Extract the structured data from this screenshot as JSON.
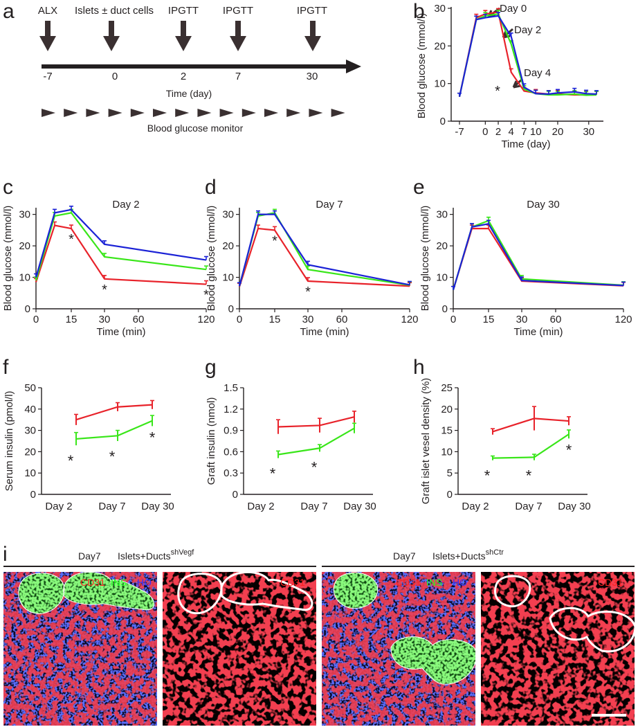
{
  "figure": {
    "panel_letters": [
      "a",
      "b",
      "c",
      "d",
      "e",
      "f",
      "g",
      "h",
      "i"
    ]
  },
  "timeline": {
    "events": [
      {
        "label": "ALX",
        "day": "-7"
      },
      {
        "label": "Islets ± duct cells",
        "day": "0"
      },
      {
        "label": "IPGTT",
        "day": "2"
      },
      {
        "label": "IPGTT",
        "day": "7"
      },
      {
        "label": "IPGTT",
        "day": "30"
      }
    ],
    "axis_label": "Time (day)",
    "monitor_label": "Blood glucose monitor",
    "monitor_marks": 14
  },
  "colors": {
    "red": "#e8222a",
    "green": "#39e619",
    "blue": "#1b22d6",
    "axis": "#231f20",
    "arrow": "#3a3031"
  },
  "chart_data": [
    {
      "panel": "b",
      "type": "line",
      "ylabel": "Blood glucose (mmol/l)",
      "xlabel": "Time (day)",
      "xticks": [
        "-7",
        "0",
        "2",
        "4",
        "7",
        "10",
        "20",
        "30"
      ],
      "ylim": [
        0,
        30
      ],
      "yticks": [
        0,
        10,
        20,
        30
      ],
      "x_positions": [
        0,
        1.3,
        2.0,
        3.0,
        4.0,
        5.0,
        5.9,
        6.9,
        7.6,
        8.9,
        9.8,
        10.6
      ],
      "series": [
        {
          "name": "red",
          "color": "#e8222a",
          "values": [
            6.5,
            27.5,
            28.5,
            29.0,
            13.0,
            8.0,
            7.5,
            7.2,
            7.2,
            7.0,
            7.0,
            7.0
          ]
        },
        {
          "name": "green",
          "color": "#39e619",
          "values": [
            6.5,
            27.0,
            28.0,
            28.5,
            20.5,
            8.5,
            7.3,
            7.0,
            7.0,
            7.2,
            6.9,
            7.0
          ]
        },
        {
          "name": "blue",
          "color": "#1b22d6",
          "values": [
            6.5,
            27.0,
            27.5,
            28.0,
            22.5,
            9.0,
            7.3,
            7.2,
            7.5,
            7.8,
            7.3,
            7.2
          ]
        }
      ],
      "annotations": [
        {
          "text": "Day 0"
        },
        {
          "text": "Day 2"
        },
        {
          "text": "Day 4"
        },
        {
          "text": "*"
        }
      ]
    },
    {
      "panel": "c",
      "type": "line",
      "title": "Day 2",
      "ylabel": "Blood glucose (mmol/l)",
      "xlabel": "Time (min)",
      "x": [
        0,
        7,
        15,
        30,
        120
      ],
      "xticks": [
        "0",
        "15",
        "30",
        "60",
        "120"
      ],
      "ylim": [
        0,
        33
      ],
      "yticks": [
        0,
        10,
        20,
        30
      ],
      "series": [
        {
          "name": "red",
          "color": "#e8222a",
          "values": [
            8.5,
            26.5,
            25.5,
            9.5,
            7.8
          ]
        },
        {
          "name": "green",
          "color": "#39e619",
          "values": [
            9.0,
            29.5,
            30.5,
            16.5,
            12.5
          ]
        },
        {
          "name": "blue",
          "color": "#1b22d6",
          "values": [
            10.0,
            30.5,
            31.5,
            20.5,
            15.5
          ]
        }
      ],
      "stars": [
        15,
        30,
        120
      ]
    },
    {
      "panel": "d",
      "type": "line",
      "title": "Day 7",
      "ylabel": "Blood glucose (mmol/l)",
      "xlabel": "Time (min)",
      "x": [
        0,
        7,
        15,
        30,
        120
      ],
      "xticks": [
        "0",
        "15",
        "30",
        "60",
        "120"
      ],
      "ylim": [
        0,
        33
      ],
      "yticks": [
        0,
        10,
        20,
        30
      ],
      "series": [
        {
          "name": "red",
          "color": "#e8222a",
          "values": [
            7.0,
            25.5,
            25.0,
            8.8,
            7.2
          ]
        },
        {
          "name": "green",
          "color": "#39e619",
          "values": [
            7.2,
            29.5,
            30.5,
            12.5,
            7.5
          ]
        },
        {
          "name": "blue",
          "color": "#1b22d6",
          "values": [
            7.2,
            30.0,
            30.0,
            14.0,
            7.6
          ]
        }
      ],
      "stars": [
        15,
        30
      ]
    },
    {
      "panel": "e",
      "type": "line",
      "title": "Day 30",
      "ylabel": "Blood glucose (mmol/l)",
      "xlabel": "Time (min)",
      "x": [
        0,
        7,
        15,
        30,
        120
      ],
      "xticks": [
        "0",
        "15",
        "30",
        "60",
        "120"
      ],
      "ylim": [
        0,
        33
      ],
      "yticks": [
        0,
        10,
        20,
        30
      ],
      "series": [
        {
          "name": "red",
          "color": "#e8222a",
          "values": [
            6.0,
            25.5,
            25.5,
            8.8,
            7.3
          ]
        },
        {
          "name": "green",
          "color": "#39e619",
          "values": [
            6.0,
            26.0,
            28.0,
            9.5,
            7.5
          ]
        },
        {
          "name": "blue",
          "color": "#1b22d6",
          "values": [
            6.0,
            26.0,
            27.0,
            9.0,
            7.4
          ]
        }
      ],
      "stars": []
    },
    {
      "panel": "f",
      "type": "line",
      "ylabel": "Serum insulin (pmol/l)",
      "categories": [
        "Day 2",
        "Day 7",
        "Day 30"
      ],
      "ylim": [
        0,
        50
      ],
      "yticks": [
        0,
        10,
        20,
        30,
        40,
        50
      ],
      "series": [
        {
          "name": "red",
          "color": "#e8222a",
          "values": [
            35,
            41,
            42
          ],
          "errors": [
            2.5,
            2,
            2
          ]
        },
        {
          "name": "green",
          "color": "#39e619",
          "values": [
            26,
            27.5,
            34.5
          ],
          "errors": [
            3,
            2.5,
            2.5
          ]
        }
      ],
      "stars": [
        0,
        1,
        2
      ]
    },
    {
      "panel": "g",
      "type": "line",
      "ylabel": "Graft insulin (nmol)",
      "categories": [
        "Day 2",
        "Day 7",
        "Day 30"
      ],
      "ylim": [
        0,
        1.5
      ],
      "yticks": [
        "0",
        "0.3",
        "0.6",
        "0.9",
        "1.2",
        "1.5"
      ],
      "yvals": [
        0,
        0.3,
        0.6,
        0.9,
        1.2,
        1.5
      ],
      "series": [
        {
          "name": "red",
          "color": "#e8222a",
          "values": [
            0.95,
            0.97,
            1.09
          ],
          "errors": [
            0.1,
            0.1,
            0.08
          ]
        },
        {
          "name": "green",
          "color": "#39e619",
          "values": [
            0.56,
            0.65,
            0.93
          ],
          "errors": [
            0.05,
            0.05,
            0.07
          ]
        }
      ],
      "stars": [
        0,
        1
      ]
    },
    {
      "panel": "h",
      "type": "line",
      "ylabel": "Graft islet vesel density (%)",
      "categories": [
        "Day 2",
        "Day 7",
        "Day 30"
      ],
      "ylim": [
        0,
        25
      ],
      "yticks": [
        0,
        5,
        10,
        15,
        20,
        25
      ],
      "series": [
        {
          "name": "red",
          "color": "#e8222a",
          "values": [
            14.7,
            17.8,
            17.2
          ],
          "errors": [
            0.7,
            2.8,
            1
          ]
        },
        {
          "name": "green",
          "color": "#39e619",
          "values": [
            8.5,
            8.7,
            14.1
          ],
          "errors": [
            0.5,
            0.7,
            1
          ]
        }
      ],
      "stars": [
        0,
        1,
        2
      ]
    }
  ],
  "micrographs": {
    "left_group": {
      "day": "Day7",
      "label": "Islets+Ducts",
      "superscript": "shVegf"
    },
    "right_group": {
      "day": "Day7",
      "label": "Islets+Ducts",
      "superscript": "shCtr"
    },
    "merge_labels": {
      "cd31": "CD31",
      "ins": "INS",
      "ho": "HO"
    },
    "single_label": "CD31"
  }
}
